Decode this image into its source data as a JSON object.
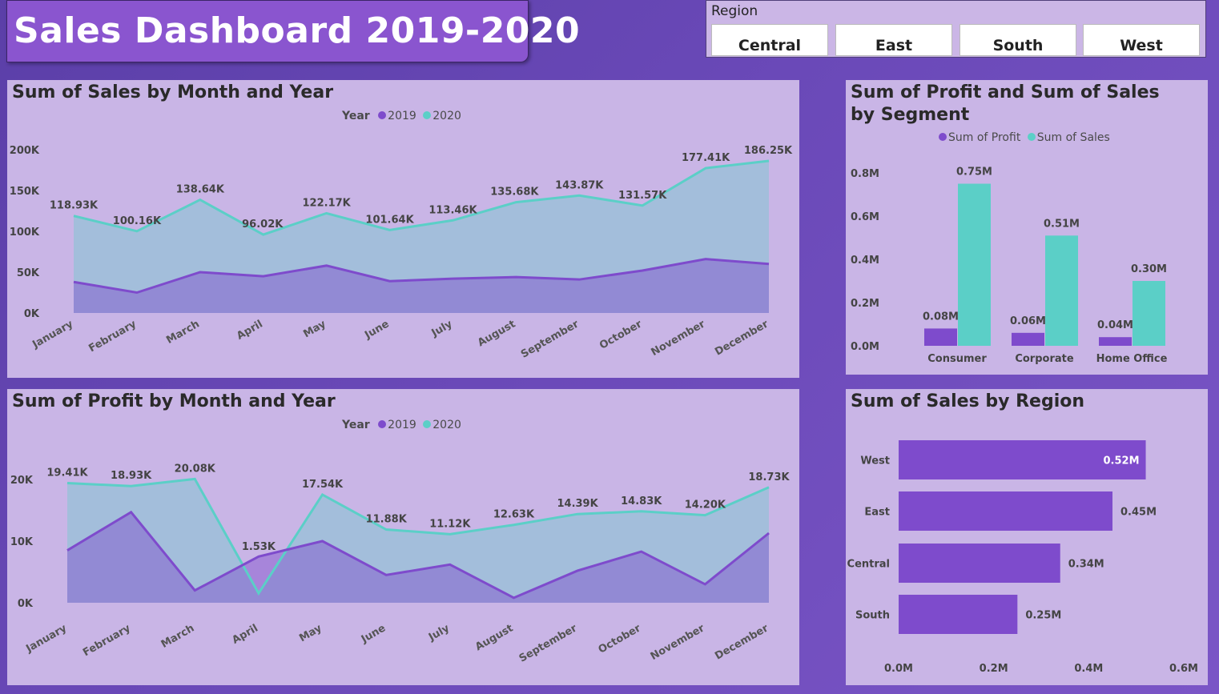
{
  "title": "Sales Dashboard 2019-2020",
  "slicer": {
    "label": "Region",
    "options": [
      "Central",
      "East",
      "South",
      "West"
    ]
  },
  "colors": {
    "y2019": "#7e4bcc",
    "y2020": "#5bcfc7",
    "bar_profit": "#7e4bcc",
    "bar_sales": "#5bcfc7",
    "region_bar": "#7e4bcc"
  },
  "chart_data": [
    {
      "id": "sales_month",
      "type": "area",
      "title": "Sum of Sales by Month and Year",
      "legend_title": "Year",
      "categories": [
        "January",
        "February",
        "March",
        "April",
        "May",
        "June",
        "July",
        "August",
        "September",
        "October",
        "November",
        "December"
      ],
      "series": [
        {
          "name": "2019",
          "values": [
            38000,
            25000,
            50000,
            45000,
            58000,
            39000,
            42000,
            44000,
            41000,
            52000,
            66000,
            60000
          ]
        },
        {
          "name": "2020",
          "values": [
            118930,
            100160,
            138640,
            96020,
            122170,
            101640,
            113460,
            135680,
            143870,
            131570,
            177410,
            186250
          ]
        }
      ],
      "data_labels": [
        "118.93K",
        "100.16K",
        "138.64K",
        "96.02K",
        "122.17K",
        "101.64K",
        "113.46K",
        "135.68K",
        "143.87K",
        "131.57K",
        "177.41K",
        "186.25K"
      ],
      "yticks": [
        "0K",
        "50K",
        "100K",
        "150K",
        "200K"
      ],
      "ylim": [
        0,
        200000
      ]
    },
    {
      "id": "profit_month",
      "type": "area",
      "title": "Sum of Profit by Month and Year",
      "legend_title": "Year",
      "categories": [
        "January",
        "February",
        "March",
        "April",
        "May",
        "June",
        "July",
        "August",
        "September",
        "October",
        "November",
        "December"
      ],
      "series": [
        {
          "name": "2019",
          "values": [
            8500,
            14700,
            2000,
            7500,
            10000,
            4500,
            6200,
            800,
            5200,
            8300,
            3000,
            11300
          ]
        },
        {
          "name": "2020",
          "values": [
            19410,
            18930,
            20080,
            1530,
            17540,
            11880,
            11120,
            12630,
            14390,
            14830,
            14200,
            18730
          ]
        }
      ],
      "data_labels": [
        "19.41K",
        "18.93K",
        "20.08K",
        "1.53K",
        "17.54K",
        "11.88K",
        "11.12K",
        "12.63K",
        "14.39K",
        "14.83K",
        "14.20K",
        "18.73K"
      ],
      "yticks": [
        "0K",
        "10K",
        "20K"
      ],
      "ylim": [
        0,
        20000
      ]
    },
    {
      "id": "segment",
      "type": "bar",
      "title": "Sum of Profit and Sum of Sales by Segment",
      "categories": [
        "Consumer",
        "Corporate",
        "Home Office"
      ],
      "series": [
        {
          "name": "Sum of Profit",
          "values": [
            0.08,
            0.06,
            0.04
          ],
          "labels": [
            "0.08M",
            "0.06M",
            "0.04M"
          ]
        },
        {
          "name": "Sum of Sales",
          "values": [
            0.75,
            0.51,
            0.3
          ],
          "labels": [
            "0.75M",
            "0.51M",
            "0.30M"
          ]
        }
      ],
      "yticks": [
        "0.0M",
        "0.2M",
        "0.4M",
        "0.6M",
        "0.8M"
      ],
      "ylim": [
        0,
        0.8
      ]
    },
    {
      "id": "region",
      "type": "bar",
      "orientation": "horizontal",
      "title": "Sum of Sales by Region",
      "categories": [
        "West",
        "East",
        "Central",
        "South"
      ],
      "values": [
        0.52,
        0.45,
        0.34,
        0.25
      ],
      "labels": [
        "0.52M",
        "0.45M",
        "0.34M",
        "0.25M"
      ],
      "xticks": [
        "0.0M",
        "0.2M",
        "0.4M",
        "0.6M"
      ],
      "xlim": [
        0,
        0.6
      ]
    }
  ]
}
